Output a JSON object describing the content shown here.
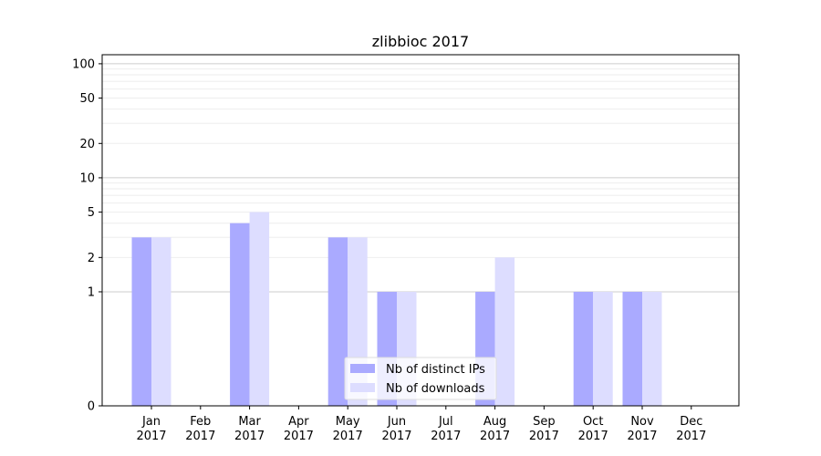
{
  "chart_data": {
    "type": "bar",
    "title": "zlibbioc 2017",
    "xlabel": "",
    "ylabel": "",
    "yscale": "symlog",
    "ylim": [
      0,
      120
    ],
    "y_ticks": [
      0,
      1,
      2,
      5,
      10,
      20,
      50,
      100
    ],
    "y_tick_labels": [
      "0",
      "1",
      "2",
      "5",
      "10",
      "20",
      "50",
      "100"
    ],
    "categories": [
      "Jan\n2017",
      "Feb\n2017",
      "Mar\n2017",
      "Apr\n2017",
      "May\n2017",
      "Jun\n2017",
      "Jul\n2017",
      "Aug\n2017",
      "Sep\n2017",
      "Oct\n2017",
      "Nov\n2017",
      "Dec\n2017"
    ],
    "series": [
      {
        "name": "Nb of distinct IPs",
        "color": "#aaaaff",
        "values": [
          3,
          0,
          4,
          0,
          3,
          1,
          0,
          1,
          0,
          1,
          1,
          0
        ]
      },
      {
        "name": "Nb of downloads",
        "color": "#ddddff",
        "values": [
          3,
          0,
          5,
          0,
          3,
          1,
          0,
          2,
          0,
          1,
          1,
          0
        ]
      }
    ],
    "grid": true,
    "legend_position": "lower-center"
  }
}
